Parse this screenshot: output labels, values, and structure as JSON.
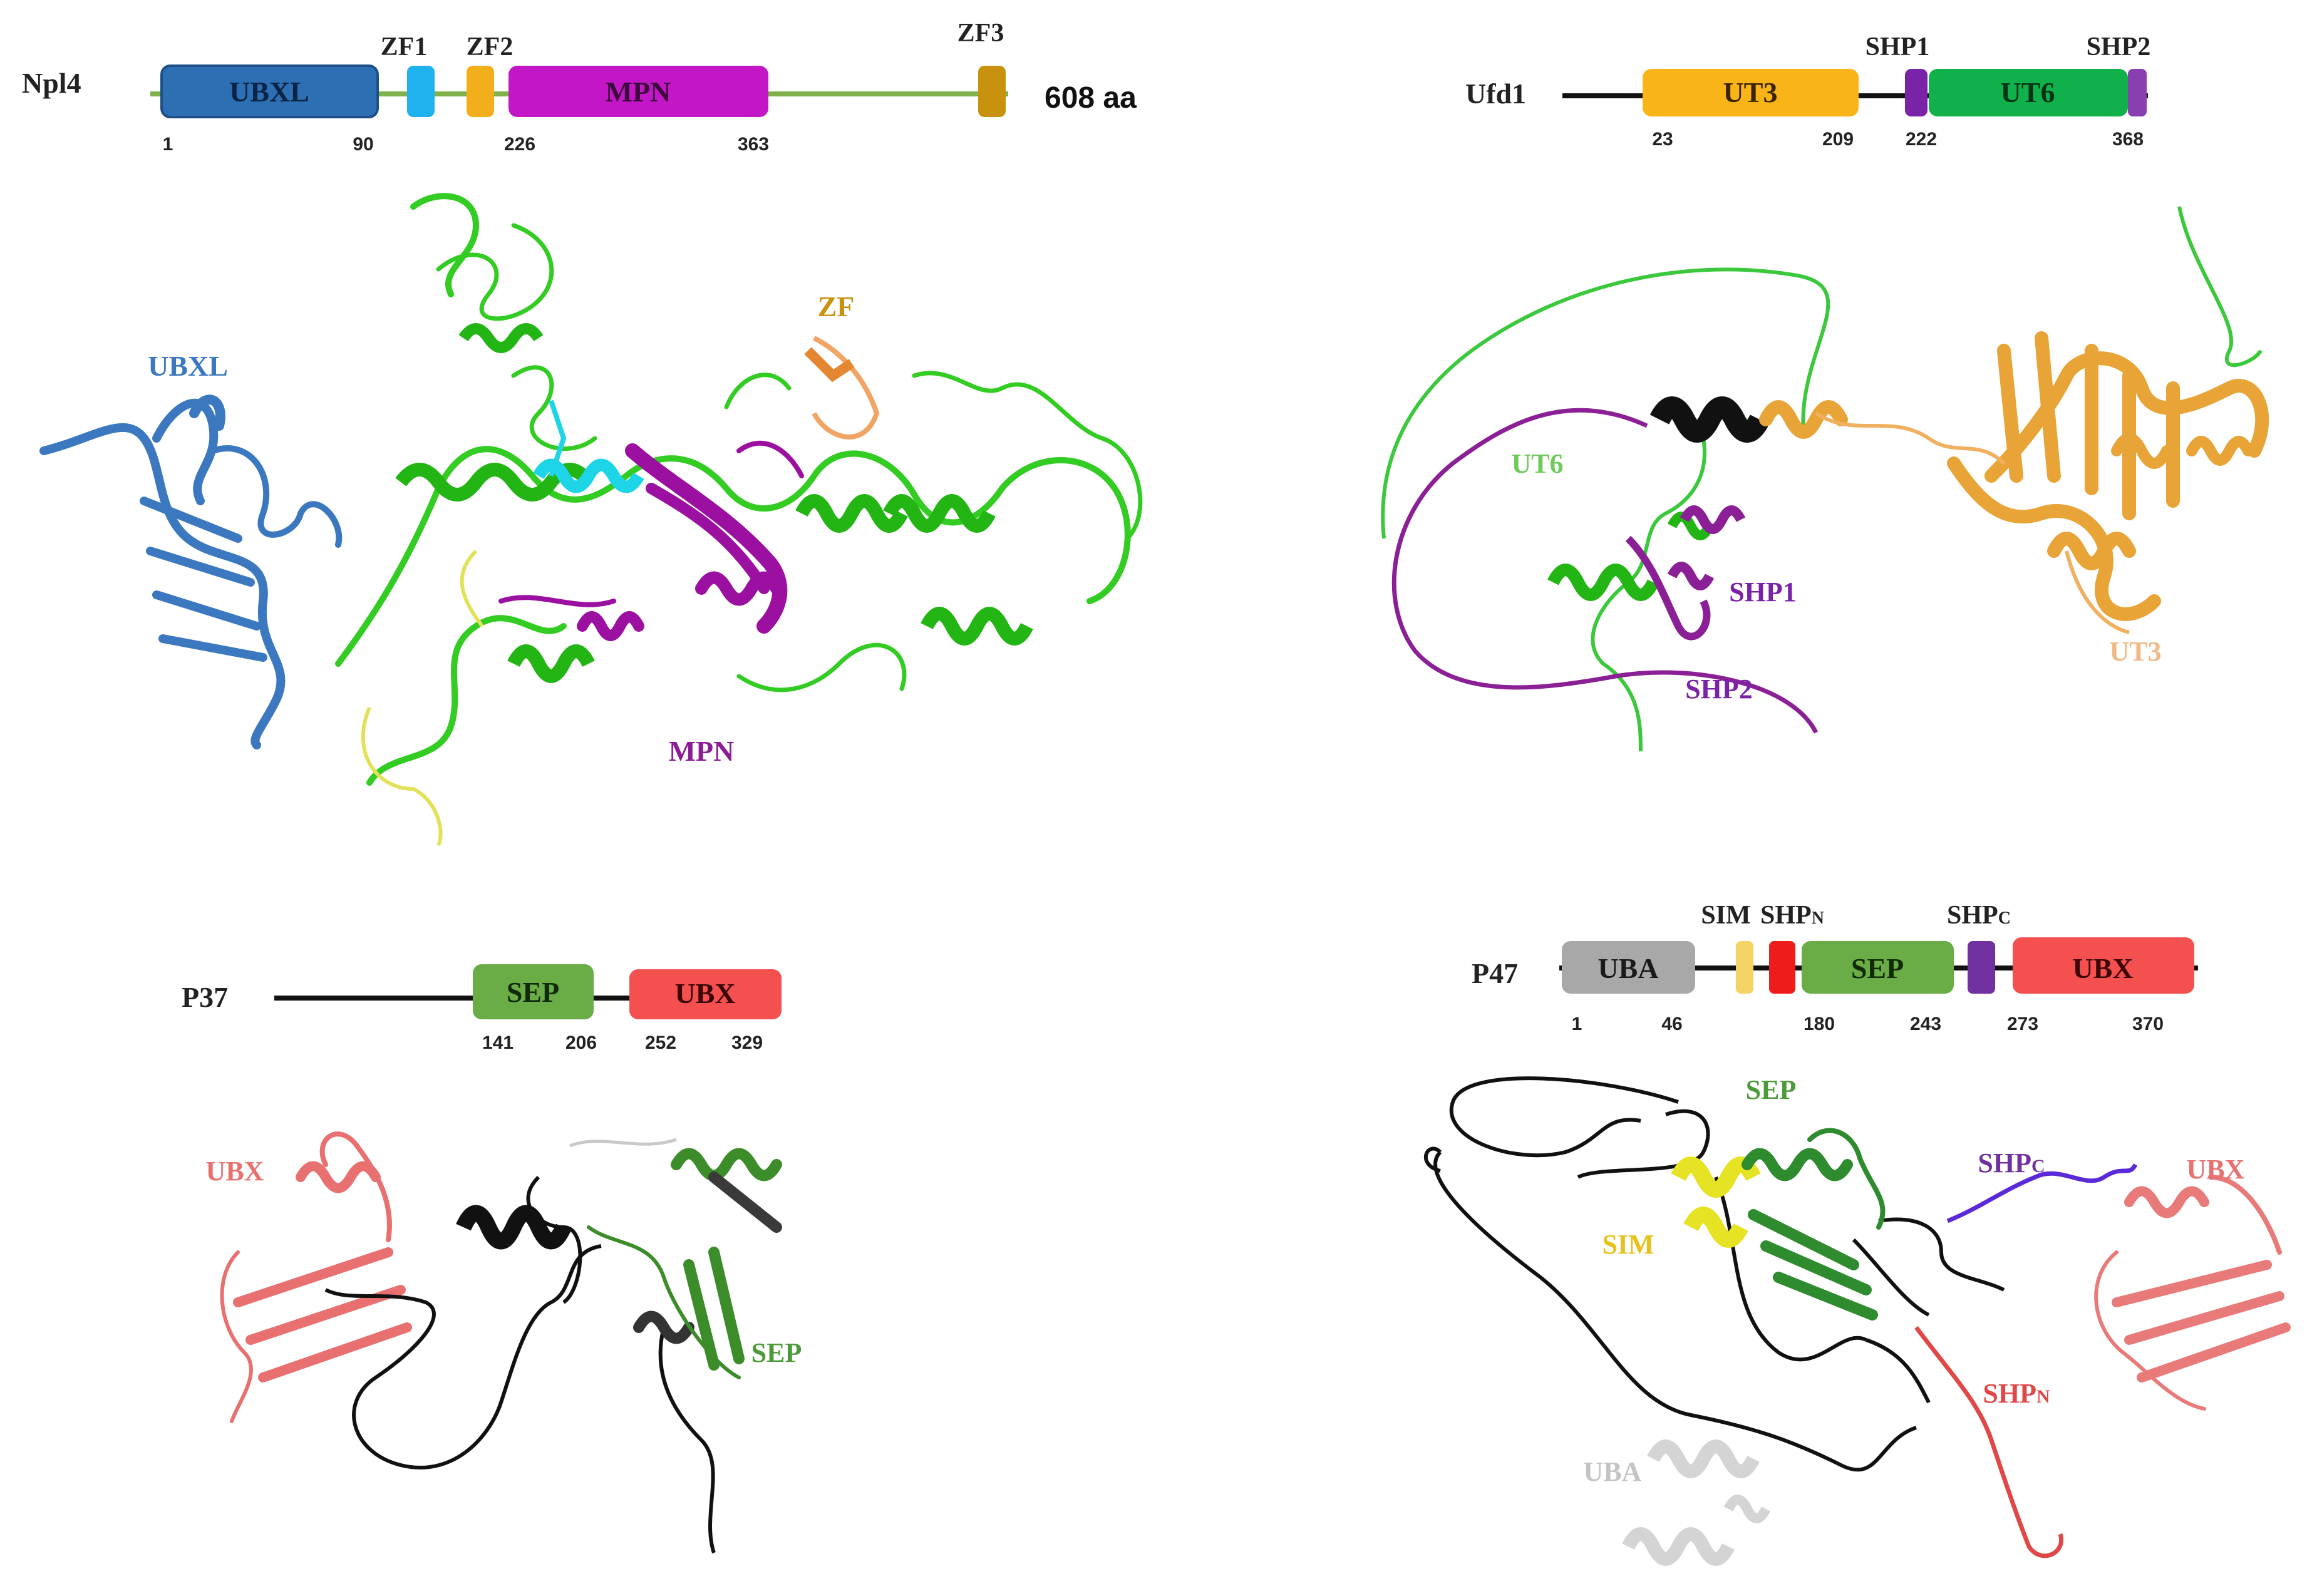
{
  "panels": {
    "npl4": {
      "protein": "Npl4",
      "length_label": "608 aa",
      "domains": [
        {
          "label": "UBXL",
          "color": "#2d6fb3"
        },
        {
          "label": "ZF1",
          "color": "#1fb2ee"
        },
        {
          "label": "ZF2",
          "color": "#f2ae1b"
        },
        {
          "label": "MPN",
          "color": "#c316c6"
        },
        {
          "label": "ZF3",
          "color": "#c8920f"
        }
      ],
      "positions": [
        "1",
        "90",
        "226",
        "363"
      ],
      "structure_labels": {
        "ubxl": "UBXL",
        "zf": "ZF",
        "mpn": "MPN"
      }
    },
    "ufd1": {
      "protein": "Ufd1",
      "domains": [
        {
          "label": "UT3",
          "color": "#f9b418"
        },
        {
          "label": "SHP1",
          "color": "#7a23a8"
        },
        {
          "label": "UT6",
          "color": "#10b04a"
        },
        {
          "label": "SHP2",
          "color": "#8a3fb0"
        }
      ],
      "positions": [
        "23",
        "209",
        "222",
        "368"
      ],
      "structure_labels": {
        "ut6": "UT6",
        "shp1": "SHP1",
        "shp2": "SHP2",
        "ut3": "UT3"
      }
    },
    "p37": {
      "protein": "P37",
      "domains": [
        {
          "label": "SEP",
          "color": "#6aac45"
        },
        {
          "label": "UBX",
          "color": "#f4504f"
        }
      ],
      "positions": [
        "141",
        "206",
        "252",
        "329"
      ],
      "structure_labels": {
        "ubx": "UBX",
        "sep": "SEP"
      }
    },
    "p47": {
      "protein": "P47",
      "domains": [
        {
          "label": "UBA",
          "color": "#a8a8a8"
        },
        {
          "label": "SIM",
          "color": "#f6d365"
        },
        {
          "label": "SHPN",
          "color": "#ef1c1c"
        },
        {
          "label": "SEP",
          "color": "#6aac45"
        },
        {
          "label": "SHPC",
          "color": "#7030a0"
        },
        {
          "label": "UBX",
          "color": "#f4504f"
        }
      ],
      "top_labels": {
        "sim": "SIM",
        "shpn_main": "SHP",
        "shpn_sub": "N",
        "shpc_main": "SHP",
        "shpc_sub": "C"
      },
      "positions": [
        "1",
        "46",
        "180",
        "243",
        "273",
        "370"
      ],
      "structure_labels": {
        "sep": "SEP",
        "shpc_main": "SHP",
        "shpc_sub": "C",
        "ubx": "UBX",
        "sim": "SIM",
        "shpn_main": "SHP",
        "shpn_sub": "N",
        "uba": "UBA"
      }
    }
  }
}
